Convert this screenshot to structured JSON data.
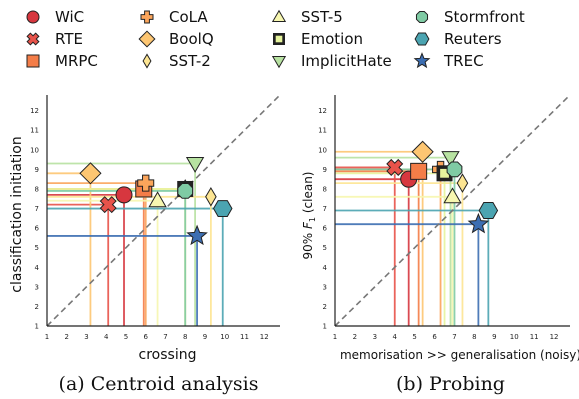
{
  "legend": [
    {
      "name": "WiC",
      "color": "#d7373f",
      "marker": "circle"
    },
    {
      "name": "RTE",
      "color": "#e8534a",
      "marker": "x"
    },
    {
      "name": "MRPC",
      "color": "#f47d48",
      "marker": "square"
    },
    {
      "name": "CoLA",
      "color": "#fba55b",
      "marker": "plus"
    },
    {
      "name": "BoolQ",
      "color": "#fdc672",
      "marker": "diamond"
    },
    {
      "name": "SST-2",
      "color": "#fde592",
      "marker": "thin-diamond"
    },
    {
      "name": "SST-5",
      "color": "#f7f7b0",
      "marker": "triangle-up"
    },
    {
      "name": "Emotion",
      "color": "#e6f49d",
      "marker": "hollow-square"
    },
    {
      "name": "ImplicitHate",
      "color": "#b7e2a1",
      "marker": "triangle-down"
    },
    {
      "name": "Stormfront",
      "color": "#7fcba4",
      "marker": "octagon"
    },
    {
      "name": "Reuters",
      "color": "#4ba4b1",
      "marker": "hexagon"
    },
    {
      "name": "TREC",
      "color": "#3c6eb2",
      "marker": "star"
    }
  ],
  "chart_data": [
    {
      "type": "scatter",
      "title": "",
      "caption": "(a) Centroid analysis",
      "xlabel": "crossing",
      "ylabel": "classification initiation",
      "xlim": [
        1,
        12.8
      ],
      "ylim": [
        1,
        12.8
      ],
      "xticks": [
        1,
        2,
        3,
        4,
        5,
        6,
        7,
        8,
        9,
        10,
        11,
        12
      ],
      "yticks": [
        1,
        2,
        3,
        4,
        5,
        6,
        7,
        8,
        9,
        10,
        11,
        12
      ],
      "diagonal": true,
      "points": [
        {
          "name": "WiC",
          "x": 4.9,
          "y": 7.7
        },
        {
          "name": "RTE",
          "x": 4.1,
          "y": 7.2
        },
        {
          "name": "MRPC",
          "x": 5.9,
          "y": 8.0
        },
        {
          "name": "CoLA",
          "x": 6.0,
          "y": 8.3
        },
        {
          "name": "BoolQ",
          "x": 3.2,
          "y": 8.8
        },
        {
          "name": "SST-2",
          "x": 8.0,
          "y": 8.0
        },
        {
          "name": "SST-5",
          "x": 6.6,
          "y": 7.4
        },
        {
          "name": "Emotion",
          "x": 8.0,
          "y": 8.0
        },
        {
          "name": "ImplicitHate",
          "x": 8.5,
          "y": 9.3
        },
        {
          "name": "Stormfront",
          "x": 8.0,
          "y": 7.9
        },
        {
          "name": "Reuters",
          "x": 9.9,
          "y": 7.0
        },
        {
          "name": "TREC",
          "x": 8.6,
          "y": 5.6
        },
        {
          "name": "SST-2",
          "x": 9.3,
          "y": 7.6
        }
      ]
    },
    {
      "type": "scatter",
      "title": "",
      "caption": "(b) Probing",
      "xlabel": "memorisation >> generalisation (noisy)",
      "ylabel": "90% F1 (clean)",
      "ylabel_parts": [
        "90% ",
        "F",
        "1",
        " (clean)"
      ],
      "xlim": [
        1,
        12.8
      ],
      "ylim": [
        1,
        12.8
      ],
      "xticks": [
        1,
        2,
        3,
        4,
        5,
        6,
        7,
        8,
        9,
        10,
        11,
        12
      ],
      "yticks": [
        1,
        2,
        3,
        4,
        5,
        6,
        7,
        8,
        9,
        10,
        11,
        12
      ],
      "diagonal": true,
      "points": [
        {
          "name": "WiC",
          "x": 4.7,
          "y": 8.5
        },
        {
          "name": "RTE",
          "x": 4.0,
          "y": 9.1
        },
        {
          "name": "MRPC",
          "x": 5.2,
          "y": 8.9
        },
        {
          "name": "CoLA",
          "x": 6.3,
          "y": 9.0
        },
        {
          "name": "BoolQ",
          "x": 5.4,
          "y": 9.9
        },
        {
          "name": "SST-2",
          "x": 7.4,
          "y": 8.3
        },
        {
          "name": "SST-5",
          "x": 6.9,
          "y": 7.6
        },
        {
          "name": "Emotion",
          "x": 6.5,
          "y": 8.8
        },
        {
          "name": "ImplicitHate",
          "x": 6.8,
          "y": 9.6
        },
        {
          "name": "Stormfront",
          "x": 7.0,
          "y": 9.0
        },
        {
          "name": "Reuters",
          "x": 8.7,
          "y": 6.9
        },
        {
          "name": "TREC",
          "x": 8.2,
          "y": 6.2
        }
      ]
    }
  ]
}
